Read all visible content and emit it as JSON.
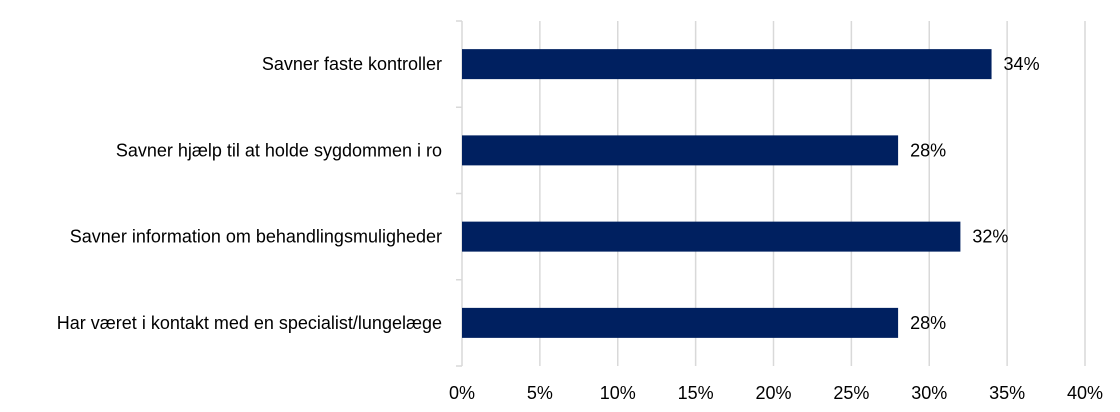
{
  "chart_data": {
    "type": "bar",
    "orientation": "horizontal",
    "categories": [
      "Savner faste kontroller",
      "Savner hjælp til at holde sygdommen i ro",
      "Savner information om behandlingsmuligheder",
      "Har været i kontakt med en specialist/lungelæge"
    ],
    "values": [
      34,
      28,
      32,
      28
    ],
    "data_labels": [
      "34%",
      "28%",
      "32%",
      "28%"
    ],
    "xlim": [
      0,
      40
    ],
    "x_ticks": [
      0,
      5,
      10,
      15,
      20,
      25,
      30,
      35,
      40
    ],
    "x_tick_labels": [
      "0%",
      "5%",
      "10%",
      "15%",
      "20%",
      "25%",
      "30%",
      "35%",
      "40%"
    ],
    "grid": "vertical",
    "bar_color": "#002060",
    "grid_color": "#d9d9d9",
    "axis_color": "#d9d9d9",
    "title": "",
    "xlabel": "",
    "ylabel": ""
  }
}
